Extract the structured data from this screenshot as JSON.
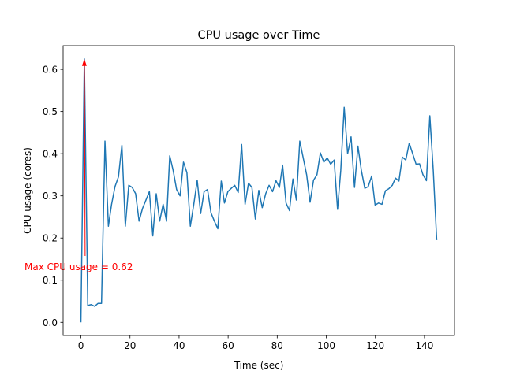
{
  "chart_data": {
    "type": "line",
    "title": "CPU usage over Time",
    "xlabel": "Time (sec)",
    "ylabel": "CPU usage (cores)",
    "annotation": "Max CPU usage = 0.62",
    "annotation_color": "#ff0000",
    "x": [
      0,
      1.4,
      2.8,
      4.2,
      5.6,
      7.0,
      8.4,
      9.8,
      11.2,
      12.5,
      13.9,
      15.3,
      16.7,
      18.1,
      19.5,
      20.9,
      22.3,
      23.7,
      25.1,
      26.5,
      27.9,
      29.3,
      30.7,
      32.1,
      33.5,
      34.9,
      36.2,
      37.6,
      39.0,
      40.4,
      41.8,
      43.2,
      44.6,
      46.0,
      47.4,
      48.8,
      50.2,
      51.6,
      53.0,
      54.4,
      55.8,
      57.2,
      58.5,
      59.9,
      61.3,
      62.7,
      64.1,
      65.5,
      66.9,
      68.3,
      69.7,
      71.1,
      72.5,
      73.9,
      75.3,
      76.7,
      78.1,
      79.5,
      80.9,
      82.2,
      83.6,
      85.0,
      86.4,
      87.8,
      89.2,
      90.6,
      92.0,
      93.4,
      94.8,
      96.2,
      97.6,
      99.0,
      100.4,
      101.8,
      103.2,
      104.6,
      105.9,
      107.3,
      108.7,
      110.1,
      111.5,
      112.9,
      114.3,
      115.7,
      117.1,
      118.5,
      119.9,
      121.3,
      122.7,
      124.1,
      125.5,
      126.9,
      128.2,
      129.6,
      131.0,
      132.4,
      133.8,
      135.2,
      136.6,
      138.0,
      139.4,
      140.8,
      142.2,
      143.6,
      145
    ],
    "series": [
      {
        "name": "CPU usage",
        "color": "#1f77b4",
        "values": [
          0.0,
          0.625,
          0.04,
          0.042,
          0.038,
          0.045,
          0.045,
          0.43,
          0.228,
          0.28,
          0.322,
          0.345,
          0.42,
          0.228,
          0.325,
          0.32,
          0.305,
          0.24,
          0.27,
          0.29,
          0.31,
          0.205,
          0.305,
          0.24,
          0.28,
          0.24,
          0.395,
          0.36,
          0.315,
          0.3,
          0.38,
          0.355,
          0.228,
          0.28,
          0.337,
          0.258,
          0.31,
          0.315,
          0.26,
          0.24,
          0.222,
          0.335,
          0.283,
          0.31,
          0.318,
          0.325,
          0.308,
          0.422,
          0.28,
          0.33,
          0.32,
          0.245,
          0.313,
          0.272,
          0.305,
          0.325,
          0.31,
          0.336,
          0.32,
          0.373,
          0.283,
          0.265,
          0.34,
          0.29,
          0.43,
          0.39,
          0.35,
          0.285,
          0.337,
          0.35,
          0.402,
          0.38,
          0.39,
          0.375,
          0.385,
          0.268,
          0.36,
          0.51,
          0.4,
          0.44,
          0.32,
          0.418,
          0.36,
          0.318,
          0.322,
          0.347,
          0.278,
          0.283,
          0.28,
          0.312,
          0.317,
          0.325,
          0.342,
          0.335,
          0.392,
          0.385,
          0.425,
          0.4,
          0.375,
          0.376,
          0.35,
          0.336,
          0.49,
          0.36,
          0.195
        ]
      }
    ],
    "xlim": [
      -7.25,
      152.25
    ],
    "ylim": [
      -0.03125,
      0.65625
    ],
    "xticks": [
      0,
      20,
      40,
      60,
      80,
      100,
      120,
      140
    ],
    "yticks": [
      {
        "value": 0,
        "label": "0.0"
      },
      0.1,
      0.2,
      0.3,
      0.4,
      0.5,
      0.6
    ]
  }
}
